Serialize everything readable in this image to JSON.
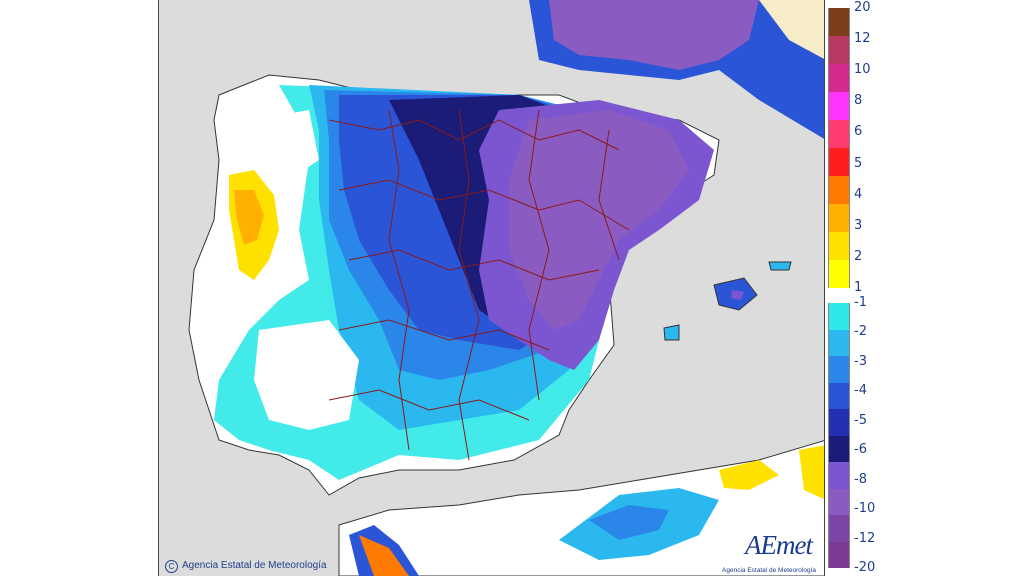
{
  "map": {
    "copyright": "Agencia Estatal de Meteorología",
    "logo_text": "AEmet",
    "logo_subtext": "Agencia Estatal de Meteorología",
    "colors": {
      "land": "#ffffff",
      "sea": "#dcdcdc",
      "borders": "#8b1a1a"
    }
  },
  "legend": {
    "labels": [
      "20",
      "12",
      "10",
      "8",
      "6",
      "5",
      "4",
      "3",
      "2",
      "1",
      "-1",
      "-2",
      "-3",
      "-4",
      "-5",
      "-6",
      "-8",
      "-10",
      "-12",
      "-20"
    ],
    "positive_bands": [
      "#7d3d1a",
      "#b83a63",
      "#d22b8d",
      "#ff33ff",
      "#ff3b6f",
      "#ff1e1e",
      "#ff7a00",
      "#ffb000",
      "#ffe100",
      "#ffff00"
    ],
    "negative_bands": [
      "#2ee8e8",
      "#2bb8ee",
      "#2a86e8",
      "#2a55d6",
      "#2430b4",
      "#1a1c78",
      "#7c55d0",
      "#8a5bc0",
      "#7e45a8",
      "#7a3a95"
    ]
  }
}
